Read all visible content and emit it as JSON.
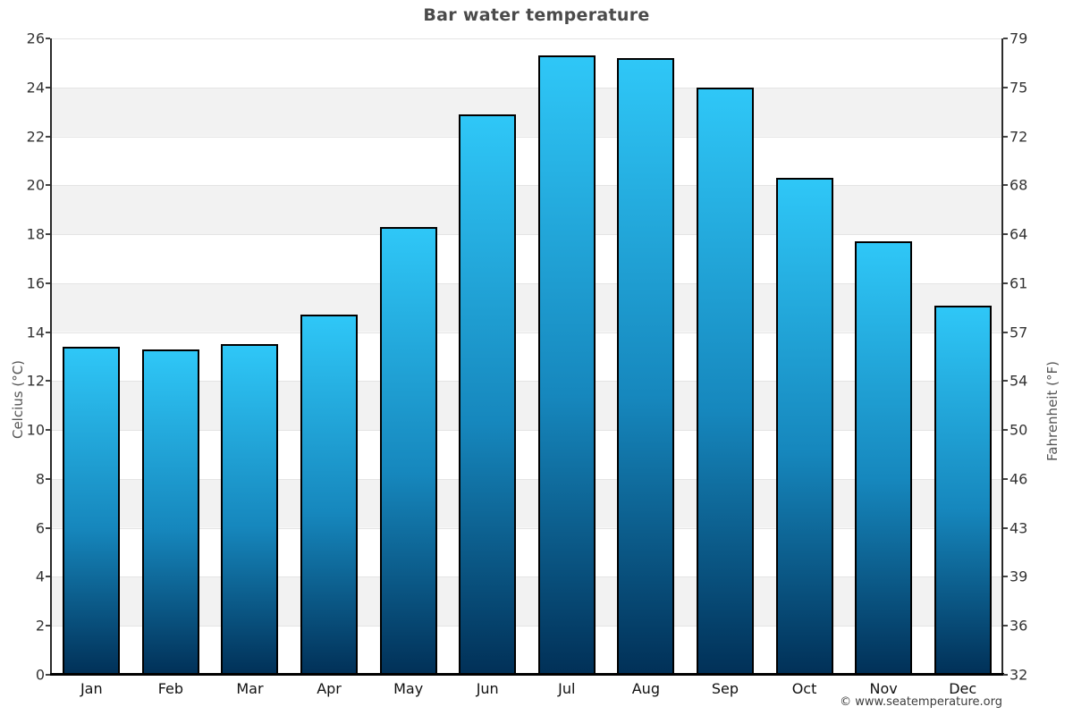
{
  "title": "Bar water temperature",
  "footer": {
    "copyright": "© www.seatemperature.org"
  },
  "chart_data": {
    "type": "bar",
    "title": "Bar water temperature",
    "categories": [
      "Jan",
      "Feb",
      "Mar",
      "Apr",
      "May",
      "Jun",
      "Jul",
      "Aug",
      "Sep",
      "Oct",
      "Nov",
      "Dec"
    ],
    "values": [
      13.4,
      13.3,
      13.5,
      14.7,
      18.3,
      22.9,
      25.3,
      25.2,
      24.0,
      20.3,
      17.7,
      15.1
    ],
    "unit": "°C",
    "ylabel_left": "Celcius (°C)",
    "ylabel_right": "Fahrenheit (°F)",
    "ylim": [
      0,
      26
    ],
    "ytick_step": 2,
    "celsius_ticks": [
      "26",
      "24",
      "22",
      "20",
      "18",
      "16",
      "14",
      "12",
      "10",
      "8",
      "6",
      "4",
      "2",
      "0"
    ],
    "fahrenheit_ticks": [
      "79",
      "75",
      "72",
      "68",
      "64",
      "61",
      "57",
      "54",
      "50",
      "46",
      "43",
      "39",
      "36",
      "32"
    ],
    "legend": "none",
    "grid": "horizontal alternating bands every 2°C",
    "colors": {
      "bar_gradient_top": "#2fc7f7",
      "bar_gradient_bottom": "#013057",
      "bar_border": "#000000",
      "band_gray": "#f2f2f2",
      "band_white": "#ffffff",
      "gridline": "#e4e4e4",
      "axis_line": "#000000",
      "title_text": "#4a4a4a",
      "tick_text": "#333333"
    }
  }
}
